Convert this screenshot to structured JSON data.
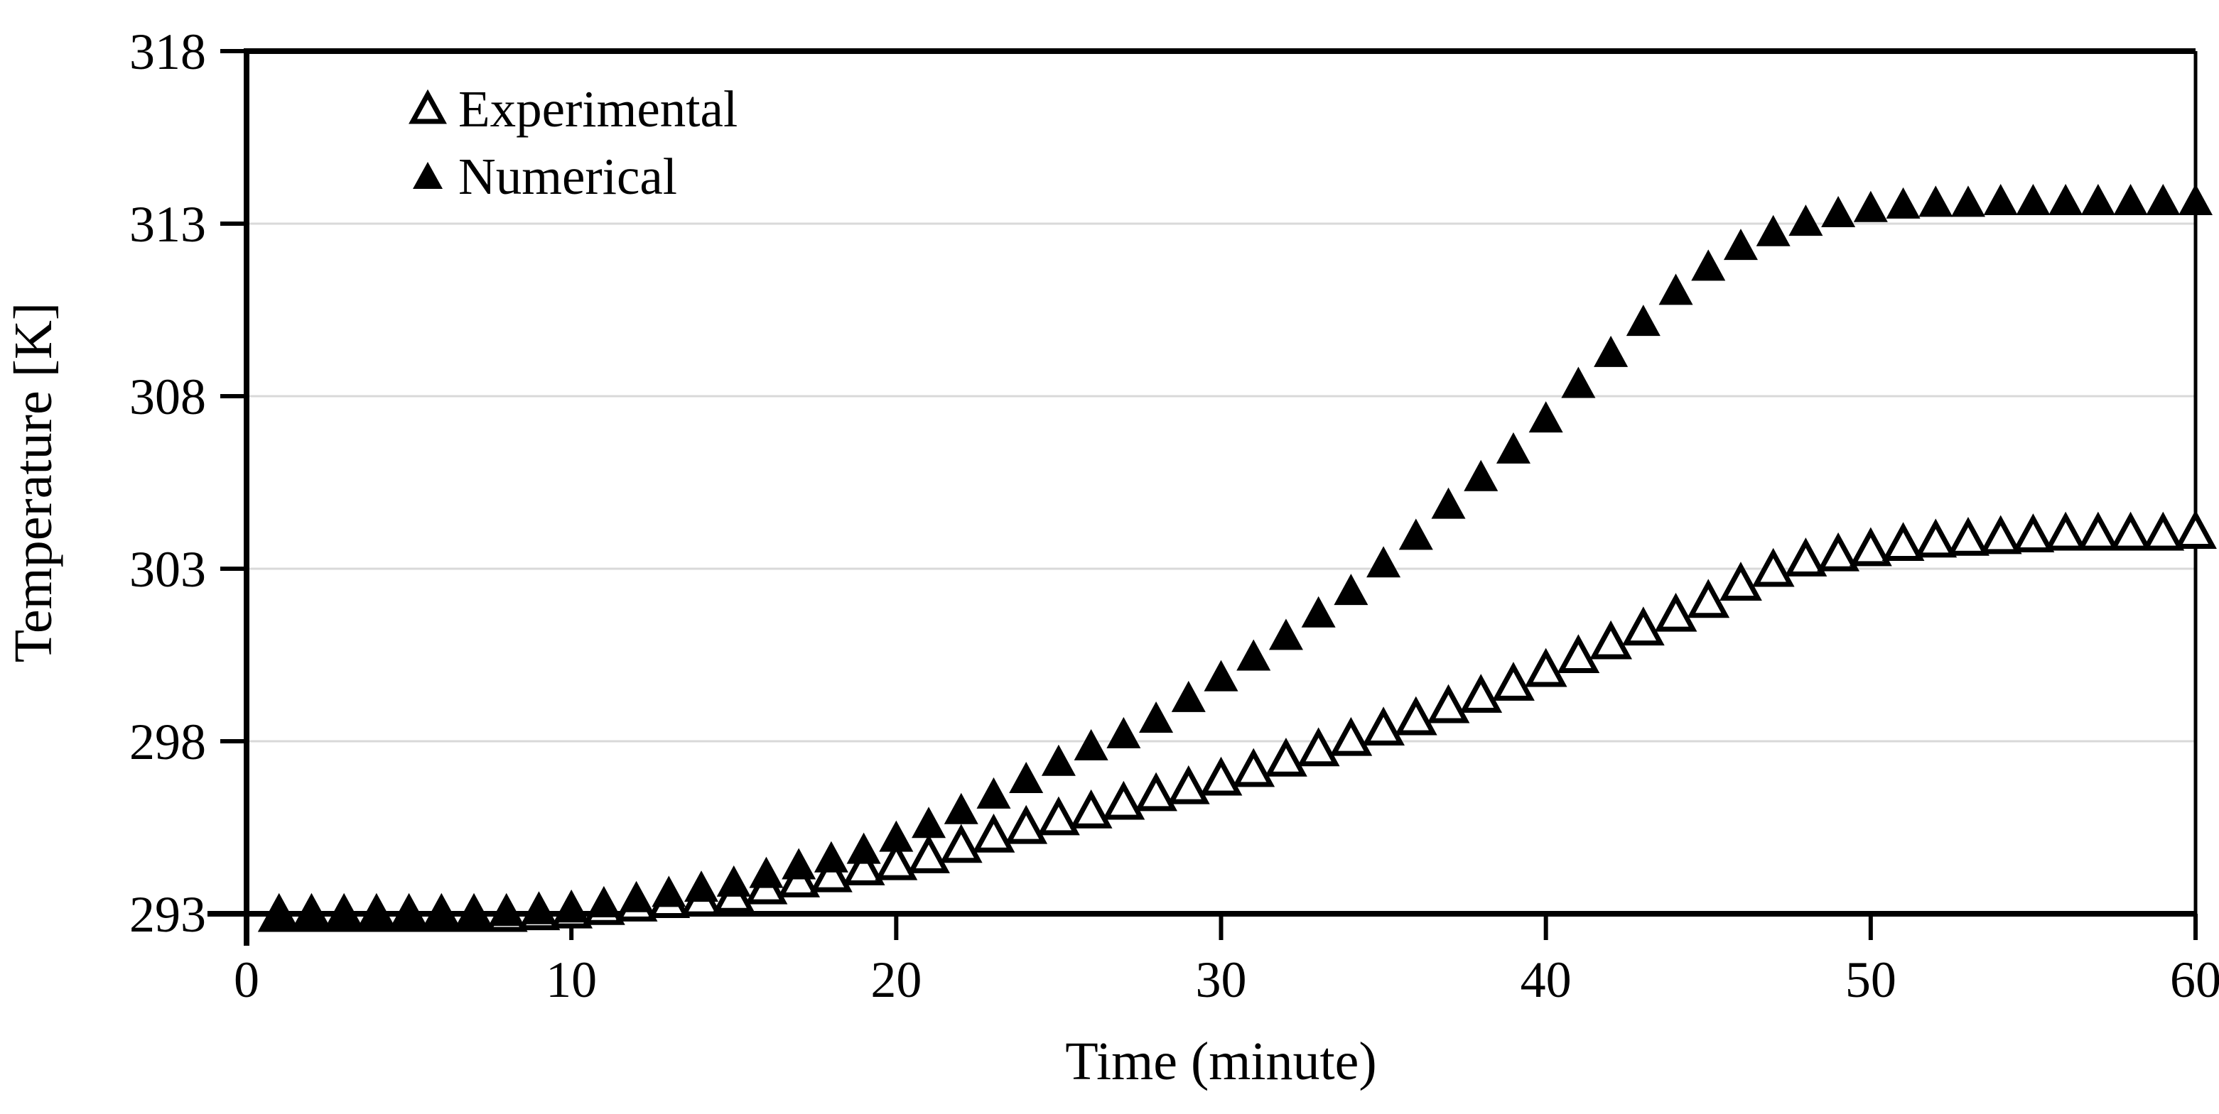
{
  "chart_data": {
    "type": "scatter",
    "title": "",
    "xlabel": "Time (minute)",
    "ylabel": "Temperature [K]",
    "xlim": [
      0,
      60
    ],
    "ylim": [
      293,
      318
    ],
    "x_ticks": [
      0,
      10,
      20,
      30,
      40,
      50,
      60
    ],
    "y_ticks": [
      293,
      298,
      303,
      308,
      313,
      318
    ],
    "grid": "horizontal",
    "gridline_color": "#d9d9d9",
    "axis_color": "#000000",
    "marker_color": "#000000",
    "legend_position": "top-left-inside",
    "x": [
      1,
      2,
      3,
      4,
      5,
      6,
      7,
      8,
      9,
      10,
      11,
      12,
      13,
      14,
      15,
      16,
      17,
      18,
      19,
      20,
      21,
      22,
      23,
      24,
      25,
      26,
      27,
      28,
      29,
      30,
      31,
      32,
      33,
      34,
      35,
      36,
      37,
      38,
      39,
      40,
      41,
      42,
      43,
      44,
      45,
      46,
      47,
      48,
      49,
      50,
      51,
      52,
      53,
      54,
      55,
      56,
      57,
      58,
      59,
      60
    ],
    "series": [
      {
        "name": "Experimental",
        "marker": "open-triangle",
        "values": [
          293.0,
          293.0,
          293.0,
          293.0,
          293.0,
          293.0,
          293.0,
          293.0,
          293.05,
          293.1,
          293.2,
          293.3,
          293.4,
          293.45,
          293.55,
          293.8,
          294.0,
          294.15,
          294.35,
          294.5,
          294.7,
          295.0,
          295.3,
          295.55,
          295.8,
          296.0,
          296.25,
          296.5,
          296.7,
          296.95,
          297.2,
          297.5,
          297.8,
          298.1,
          298.4,
          298.7,
          299.05,
          299.35,
          299.7,
          300.1,
          300.5,
          300.9,
          301.3,
          301.7,
          302.1,
          302.6,
          303.0,
          303.3,
          303.45,
          303.6,
          303.75,
          303.85,
          303.9,
          303.95,
          304.0,
          304.05,
          304.05,
          304.05,
          304.05,
          304.1
        ]
      },
      {
        "name": "Numerical",
        "marker": "filled-triangle",
        "values": [
          293.0,
          293.0,
          293.0,
          293.0,
          293.0,
          293.05,
          293.05,
          293.1,
          293.15,
          293.2,
          293.35,
          293.5,
          293.65,
          293.8,
          293.95,
          294.2,
          294.45,
          294.65,
          294.9,
          295.25,
          295.65,
          296.05,
          296.5,
          296.95,
          297.45,
          297.9,
          298.25,
          298.7,
          299.3,
          299.9,
          300.5,
          301.1,
          301.75,
          302.4,
          303.2,
          304.0,
          304.9,
          305.7,
          306.5,
          307.4,
          308.4,
          309.3,
          310.2,
          311.1,
          311.8,
          312.4,
          312.8,
          313.1,
          313.35,
          313.5,
          313.6,
          313.65,
          313.65,
          313.7,
          313.7,
          313.7,
          313.7,
          313.7,
          313.7,
          313.7
        ]
      }
    ],
    "legend": [
      {
        "label": "Experimental",
        "marker": "open-triangle"
      },
      {
        "label": "Numerical",
        "marker": "filled-triangle"
      }
    ]
  }
}
